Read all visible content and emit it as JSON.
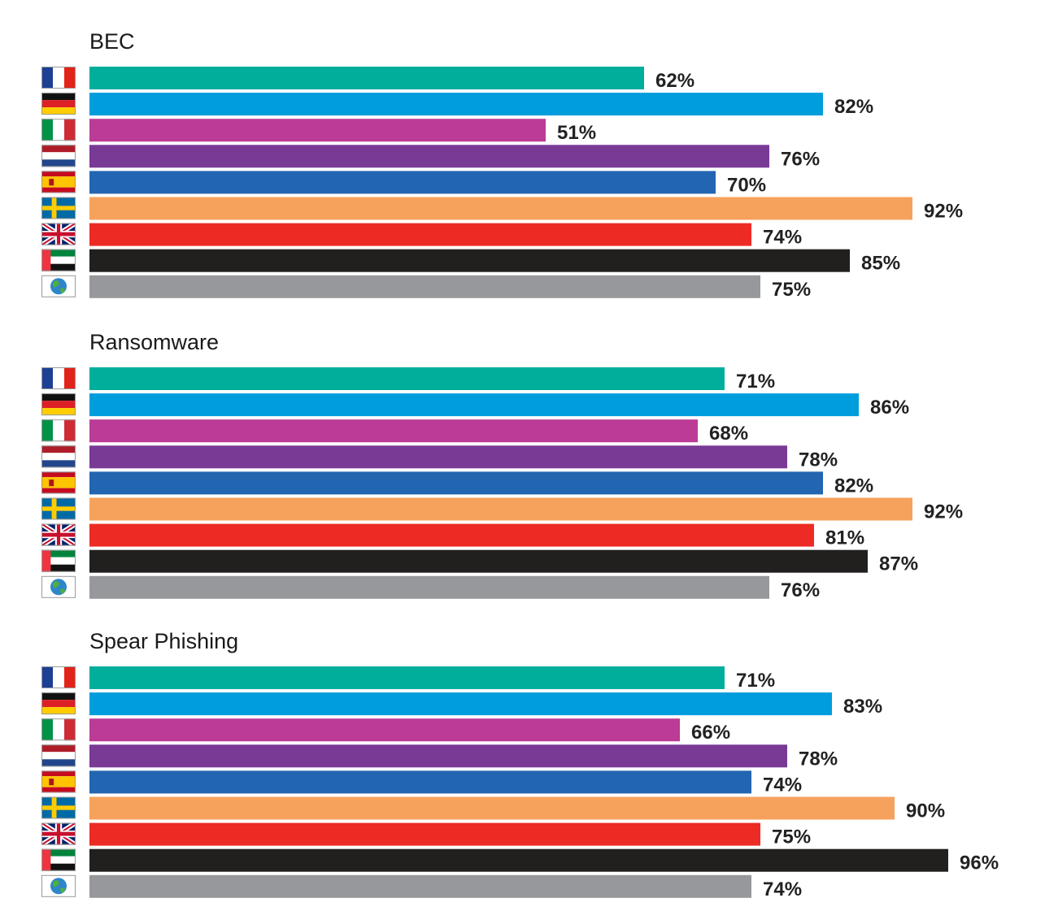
{
  "chart_data": [
    {
      "type": "bar",
      "orientation": "horizontal",
      "title": "BEC",
      "categories": [
        "France",
        "Germany",
        "Italy",
        "Netherlands",
        "Spain",
        "Sweden",
        "United Kingdom",
        "United Arab Emirates",
        "Global"
      ],
      "category_icons": [
        "france-flag-icon",
        "germany-flag-icon",
        "italy-flag-icon",
        "netherlands-flag-icon",
        "spain-flag-icon",
        "sweden-flag-icon",
        "uk-flag-icon",
        "uae-flag-icon",
        "globe-icon"
      ],
      "values": [
        62,
        82,
        51,
        76,
        70,
        92,
        74,
        85,
        75
      ],
      "value_labels": [
        "62%",
        "82%",
        "51%",
        "76%",
        "70%",
        "92%",
        "74%",
        "85%",
        "75%"
      ],
      "xlim": [
        0,
        100
      ],
      "grid": false
    },
    {
      "type": "bar",
      "orientation": "horizontal",
      "title": "Ransomware",
      "categories": [
        "France",
        "Germany",
        "Italy",
        "Netherlands",
        "Spain",
        "Sweden",
        "United Kingdom",
        "United Arab Emirates",
        "Global"
      ],
      "category_icons": [
        "france-flag-icon",
        "germany-flag-icon",
        "italy-flag-icon",
        "netherlands-flag-icon",
        "spain-flag-icon",
        "sweden-flag-icon",
        "uk-flag-icon",
        "uae-flag-icon",
        "globe-icon"
      ],
      "values": [
        71,
        86,
        68,
        78,
        82,
        92,
        81,
        87,
        76
      ],
      "value_labels": [
        "71%",
        "86%",
        "68%",
        "78%",
        "82%",
        "92%",
        "81%",
        "87%",
        "76%"
      ],
      "xlim": [
        0,
        100
      ],
      "grid": false
    },
    {
      "type": "bar",
      "orientation": "horizontal",
      "title": "Spear Phishing",
      "categories": [
        "France",
        "Germany",
        "Italy",
        "Netherlands",
        "Spain",
        "Sweden",
        "United Kingdom",
        "United Arab Emirates",
        "Global"
      ],
      "category_icons": [
        "france-flag-icon",
        "germany-flag-icon",
        "italy-flag-icon",
        "netherlands-flag-icon",
        "spain-flag-icon",
        "sweden-flag-icon",
        "uk-flag-icon",
        "uae-flag-icon",
        "globe-icon"
      ],
      "values": [
        71,
        83,
        66,
        78,
        74,
        90,
        75,
        96,
        74
      ],
      "value_labels": [
        "71%",
        "83%",
        "66%",
        "78%",
        "74%",
        "90%",
        "75%",
        "96%",
        "74%"
      ],
      "xlim": [
        0,
        100
      ],
      "grid": false
    }
  ],
  "colors": {
    "bars": [
      "#00ae9c",
      "#009ddd",
      "#bb3b96",
      "#793a96",
      "#2265b0",
      "#f6a25c",
      "#ed2b24",
      "#221f1f",
      "#97989b"
    ],
    "label_text": "#222222",
    "title_text": "#1a1a1a"
  }
}
